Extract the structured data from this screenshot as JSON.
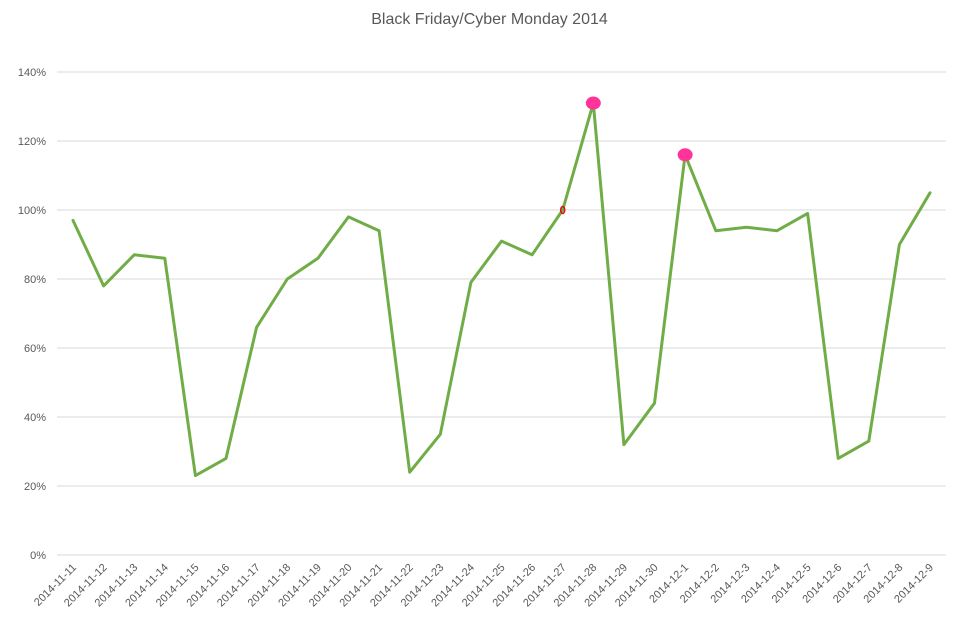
{
  "chart_data": {
    "type": "line",
    "title": "Black Friday/Cyber Monday 2014",
    "xlabel": "",
    "ylabel": "",
    "categories": [
      "2014-11-11",
      "2014-11-12",
      "2014-11-13",
      "2014-11-14",
      "2014-11-15",
      "2014-11-16",
      "2014-11-17",
      "2014-11-18",
      "2014-11-19",
      "2014-11-20",
      "2014-11-21",
      "2014-11-22",
      "2014-11-23",
      "2014-11-24",
      "2014-11-25",
      "2014-11-26",
      "2014-11-27",
      "2014-11-28",
      "2014-11-29",
      "2014-11-30",
      "2014-12-1",
      "2014-12-2",
      "2014-12-3",
      "2014-12-4",
      "2014-12-5",
      "2014-12-6",
      "2014-12-7",
      "2014-12-8",
      "2014-12-9"
    ],
    "series": [
      {
        "values": [
          97,
          78,
          87,
          86,
          23,
          28,
          66,
          80,
          86,
          98,
          94,
          24,
          35,
          79,
          91,
          87,
          100,
          131,
          32,
          44,
          116,
          94,
          95,
          94,
          99,
          28,
          33,
          90,
          105
        ],
        "color": "#70ad47"
      }
    ],
    "highlights": [
      {
        "category": "2014-11-28",
        "value": 131,
        "color": "#ff3399"
      },
      {
        "category": "2014-12-1",
        "value": 116,
        "color": "#ff3399"
      }
    ],
    "marker": {
      "category": "2014-11-27",
      "value": 100,
      "color": "#e01010"
    },
    "ylim": [
      0,
      140
    ],
    "y_ticks": [
      0,
      20,
      40,
      60,
      80,
      100,
      120,
      140
    ],
    "y_tick_labels": [
      "0%",
      "20%",
      "40%",
      "60%",
      "80%",
      "100%",
      "120%",
      "140%"
    ],
    "grid": true,
    "legend": "none"
  }
}
